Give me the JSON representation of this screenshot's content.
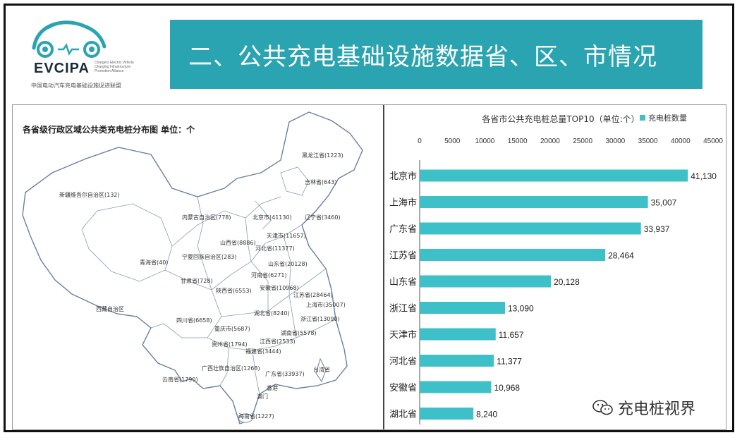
{
  "header": {
    "logo": {
      "name": "EVCIPA",
      "subtitle": "中国电动汽车充电基础设施促进联盟",
      "tagline": "Chargers Electric Vehicle Charging Infrastructure Promotion Alliance"
    },
    "title": "二、公共充电基础设施数据省、区、市情况"
  },
  "map": {
    "title": "各省级行政区域公共类充电桩分布图   单位：个",
    "labels": [
      {
        "text": "黑龙江省(1223)"
      },
      {
        "text": "吉林省(643)"
      },
      {
        "text": "新疆维吾尔自治区(132)"
      },
      {
        "text": "内蒙古自治区(778)"
      },
      {
        "text": "北京市(41130)"
      },
      {
        "text": "辽宁省(3460)"
      },
      {
        "text": "天津市(11657)"
      },
      {
        "text": "河北省(11377)"
      },
      {
        "text": "山西省(8886)"
      },
      {
        "text": "宁夏回族自治区(283)"
      },
      {
        "text": "山东省(20128)"
      },
      {
        "text": "青海省(40)"
      },
      {
        "text": "甘肃省(728)"
      },
      {
        "text": "河南省(6271)"
      },
      {
        "text": "陕西省(6553)"
      },
      {
        "text": "安徽省(10968)"
      },
      {
        "text": "江苏省(28464)"
      },
      {
        "text": "上海市(35007)"
      },
      {
        "text": "西藏自治区"
      },
      {
        "text": "湖北省(8240)"
      },
      {
        "text": "四川省(6658)"
      },
      {
        "text": "浙江省(13090)"
      },
      {
        "text": "重庆市(5687)"
      },
      {
        "text": "湖南省(5578)"
      },
      {
        "text": "贵州省(1794)"
      },
      {
        "text": "江西省(2533)"
      },
      {
        "text": "福建省(3444)"
      },
      {
        "text": "广西壮族自治区(1268)"
      },
      {
        "text": "广东省(33937)"
      },
      {
        "text": "云南省(1790)"
      },
      {
        "text": "台湾省"
      },
      {
        "text": "香港"
      },
      {
        "text": "澳门"
      },
      {
        "text": "海南省(1227)"
      }
    ]
  },
  "chart_data": {
    "type": "bar",
    "orientation": "horizontal",
    "title": "各省市公共充电桩总量TOP10（单位:个）",
    "legend": [
      "充电桩数量"
    ],
    "legend_position": "top-right",
    "categories": [
      "北京市",
      "上海市",
      "广东省",
      "江苏省",
      "山东省",
      "浙江省",
      "天津市",
      "河北省",
      "安徽省",
      "湖北省"
    ],
    "series": [
      {
        "name": "充电桩数量",
        "values": [
          41130,
          35007,
          33937,
          28464,
          20128,
          13090,
          11657,
          11377,
          10968,
          8240
        ]
      }
    ],
    "value_labels": [
      "41,130",
      "35,007",
      "33,937",
      "28,464",
      "20,128",
      "13,090",
      "11,657",
      "11,377",
      "10,968",
      "8,240"
    ],
    "xlim": [
      0,
      45000
    ],
    "x_ticks": [
      "0",
      "5000",
      "10000",
      "15000",
      "20000",
      "25000",
      "30000",
      "35000",
      "40000",
      "45000"
    ],
    "tick_values": [
      0,
      5000,
      10000,
      15000,
      20000,
      25000,
      30000,
      35000,
      40000,
      45000
    ],
    "grid": false,
    "bar_color": "#3ec0c8"
  },
  "watermark": {
    "text": "充电桩视界",
    "icon": "wechat-icon"
  },
  "colors": {
    "title_bar": "#2aa4b0",
    "bar": "#3ec0c8"
  }
}
